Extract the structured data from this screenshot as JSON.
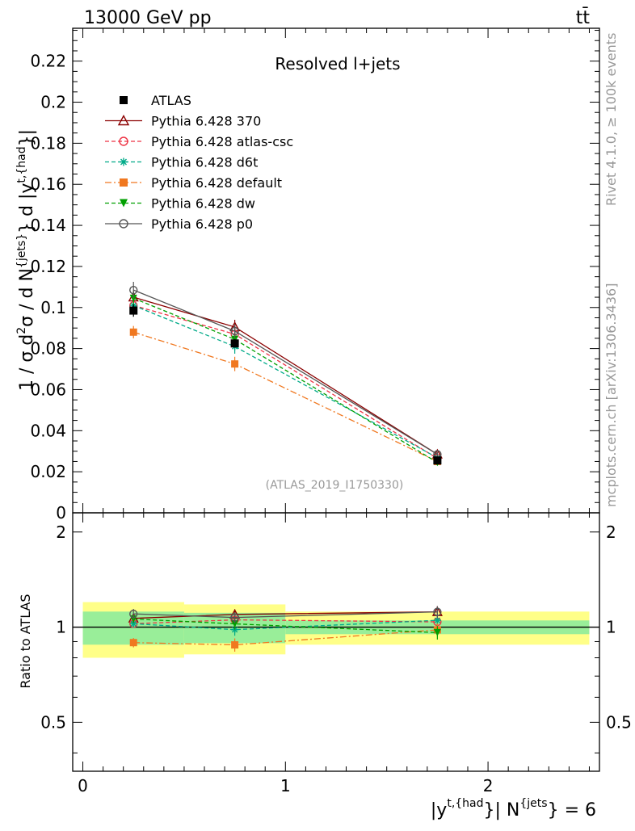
{
  "header": {
    "beam": "13000 GeV pp",
    "process": "tt̄",
    "title": "Resolved l+jets",
    "analysis_id": "(ATLAS_2019_I1750330)",
    "rivet_label": "Rivet 4.1.0, ≥ 100k events",
    "mcplots_label": "mcplots.cern.ch [arXiv:1306.3436]"
  },
  "axes": {
    "main_ylabel": {
      "pre": "1 / σ d",
      "s1": "2",
      "mid1": "σ / d N",
      "s2": "{jets}",
      "mid2": "} d |y",
      "s3": "t,{had",
      "post": "}|"
    },
    "ratio_ylabel": "Ratio to ATLAS",
    "xlabel": {
      "pre": "|y",
      "s1": "t,{had",
      "mid": "}| N",
      "s2": "{jets",
      "post": "} = 6"
    },
    "main_yticks": [
      "0",
      "0.02",
      "0.04",
      "0.06",
      "0.08",
      "0.1",
      "0.12",
      "0.14",
      "0.16",
      "0.18",
      "0.2",
      "0.22"
    ],
    "ratio_yticks_left": [
      "0.5",
      "1",
      "2"
    ],
    "ratio_yticks_right": [
      "0.5",
      "1",
      "2"
    ],
    "xticks": [
      "0",
      "1",
      "2"
    ]
  },
  "chart_data": {
    "type": "line",
    "title": "Resolved l+jets",
    "xlabel": "|y^{t,{had}}| N^{jets} = 6",
    "ylabel": "1 / σ d²σ / d N^{jets} d |y^{t,{had}}|",
    "xlim": [
      -0.05,
      2.55
    ],
    "ylim": [
      0,
      0.236
    ],
    "ratio_ylim": [
      0.35,
      2.3
    ],
    "bins": [
      [
        0,
        0.5
      ],
      [
        0.5,
        1.0
      ],
      [
        1.0,
        2.5
      ]
    ],
    "x": [
      0.25,
      0.75,
      1.75
    ],
    "data": {
      "name": "ATLAS",
      "values": [
        0.0985,
        0.0825,
        0.0255
      ],
      "errors": [
        0.003,
        0.002,
        0.0012
      ],
      "band_stat": [
        0.12,
        0.11,
        0.05
      ],
      "band_total": [
        0.2,
        0.18,
        0.12
      ]
    },
    "series": [
      {
        "name": "Pythia 6.428 370",
        "color": "#8b0000",
        "dash": "",
        "marker": "triangle-open",
        "values": [
          0.105,
          0.0905,
          0.0285
        ],
        "errors": [
          0.003,
          0.0035,
          0.0012
        ]
      },
      {
        "name": "Pythia 6.428 atlas-csc",
        "color": "#ee3344",
        "dash": "5,3",
        "marker": "circle-open",
        "values": [
          0.101,
          0.087,
          0.0265
        ],
        "errors": [
          0.003,
          0.0035,
          0.0012
        ]
      },
      {
        "name": "Pythia 6.428 d6t",
        "color": "#00aa88",
        "dash": "5,3",
        "marker": "star",
        "values": [
          0.101,
          0.081,
          0.0268
        ],
        "errors": [
          0.003,
          0.0035,
          0.0012
        ]
      },
      {
        "name": "Pythia 6.428 default",
        "color": "#f07820",
        "dash": "8,3,2,3",
        "marker": "square",
        "values": [
          0.088,
          0.0725,
          0.025
        ],
        "errors": [
          0.003,
          0.0035,
          0.0012
        ]
      },
      {
        "name": "Pythia 6.428 dw",
        "color": "#00a000",
        "dash": "5,3",
        "marker": "triangle-down",
        "values": [
          0.1045,
          0.0845,
          0.0245
        ],
        "errors": [
          0.003,
          0.0035,
          0.0012
        ]
      },
      {
        "name": "Pythia 6.428 p0",
        "color": "#555555",
        "dash": "",
        "marker": "circle-open",
        "values": [
          0.1085,
          0.0885,
          0.0285
        ],
        "errors": [
          0.004,
          0.0035,
          0.0012
        ]
      }
    ]
  }
}
